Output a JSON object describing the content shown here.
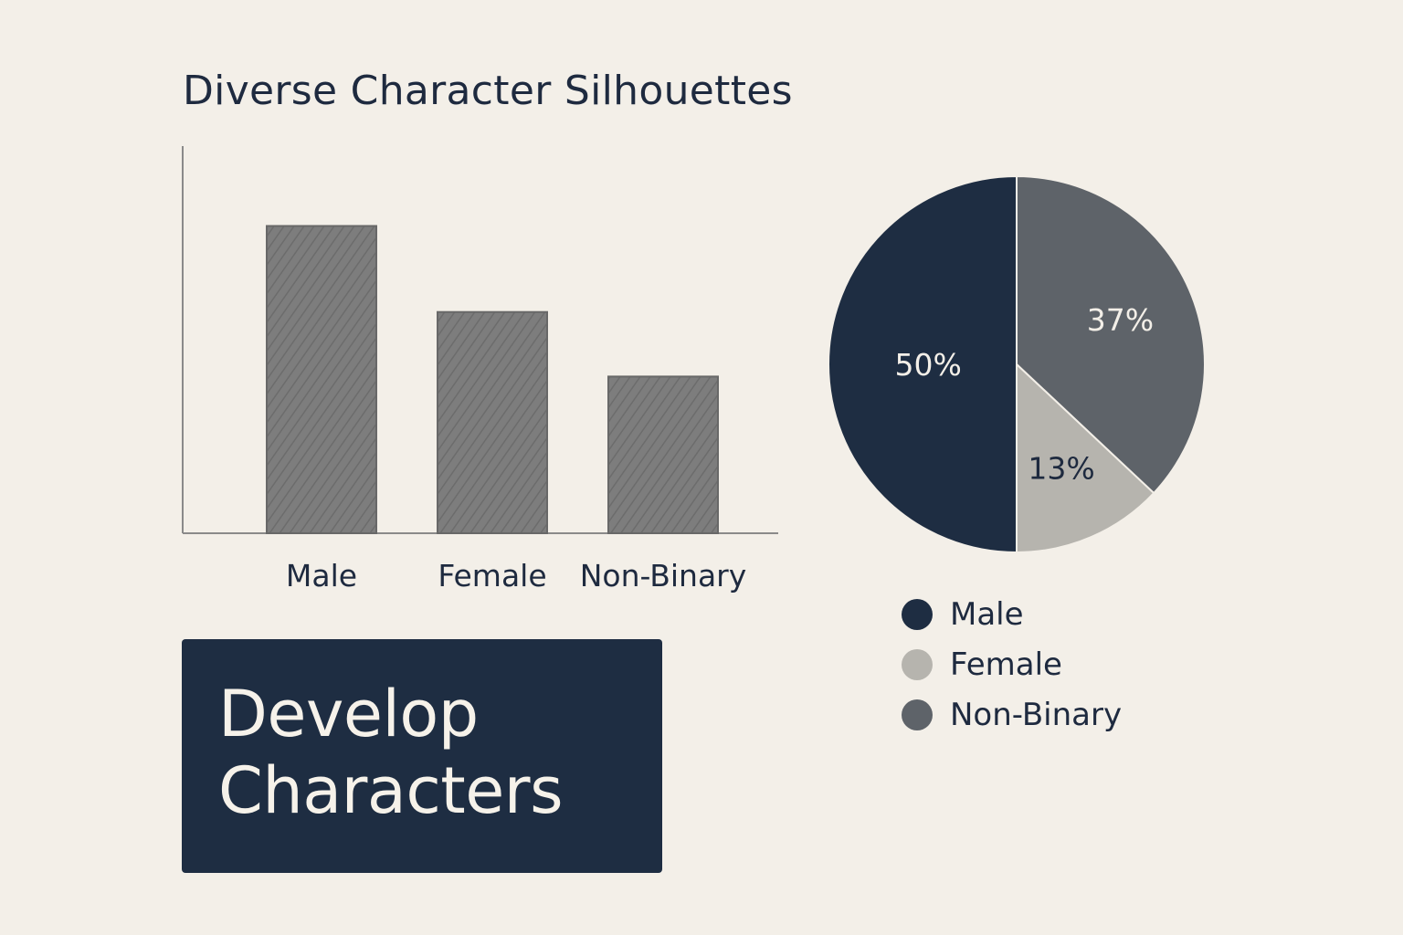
{
  "title": "Diverse Character Silhouettes",
  "chart_data": [
    {
      "type": "bar",
      "categories": [
        "Male",
        "Female",
        "Non-Binary"
      ],
      "values": [
        100,
        72,
        51
      ],
      "ylim": [
        0,
        126
      ],
      "grid": false,
      "colors": {
        "bar": "#7b7b7b",
        "bar_edge": "#686868",
        "axis": "#8a8a8a"
      }
    },
    {
      "type": "pie",
      "start_angle_deg": 0,
      "direction": "clockwise",
      "slices": [
        {
          "name": "Non-Binary",
          "value": 37,
          "label": "37%",
          "color": "#5e6369"
        },
        {
          "name": "Female",
          "value": 13,
          "label": "13%",
          "color": "#b6b4ae"
        },
        {
          "name": "Male",
          "value": 50,
          "label": "50%",
          "color": "#1e2d42"
        }
      ],
      "legend": {
        "placement": "below",
        "items": [
          {
            "label": "Male",
            "color": "#1e2d42"
          },
          {
            "label": "Female",
            "color": "#b6b4ae"
          },
          {
            "label": "Non-Binary",
            "color": "#5e6369"
          }
        ]
      }
    }
  ],
  "cta": {
    "line1": "Develop",
    "line2": "Characters"
  }
}
